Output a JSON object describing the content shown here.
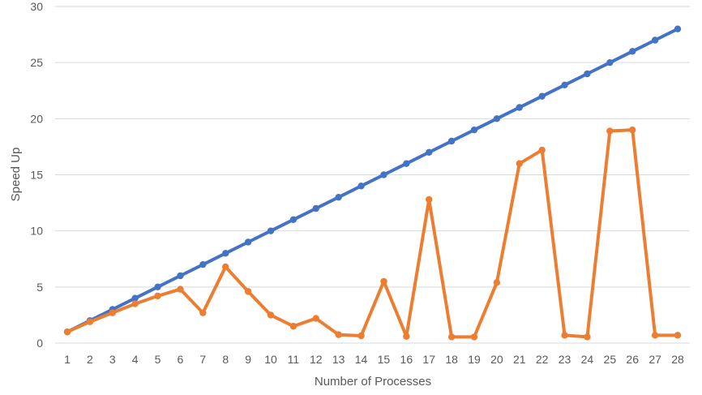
{
  "chart_data": {
    "type": "line",
    "xlabel": "Number of Processes",
    "ylabel": "Speed Up",
    "ylim": [
      0,
      30
    ],
    "yticks": [
      0,
      5,
      10,
      15,
      20,
      25,
      30
    ],
    "grid": "horizontal",
    "legend": "none",
    "categories": [
      "1",
      "2",
      "3",
      "4",
      "5",
      "6",
      "7",
      "8",
      "9",
      "10",
      "11",
      "12",
      "13",
      "14",
      "15",
      "16",
      "17",
      "18",
      "19",
      "20",
      "21",
      "22",
      "23",
      "24",
      "25",
      "26",
      "27",
      "28"
    ],
    "series": [
      {
        "color": "#4472C4",
        "values": [
          1,
          2,
          3,
          4,
          5,
          6,
          7,
          8,
          9,
          10,
          11,
          12,
          13,
          14,
          15,
          16,
          17,
          18,
          19,
          20,
          21,
          22,
          23,
          24,
          25,
          26,
          27,
          28
        ]
      },
      {
        "color": "#ED7D31",
        "values": [
          1,
          1.9,
          2.7,
          3.5,
          4.2,
          4.8,
          2.7,
          6.8,
          4.6,
          2.5,
          1.5,
          2.2,
          0.75,
          0.65,
          5.5,
          0.6,
          12.8,
          0.55,
          0.55,
          5.4,
          16,
          17.2,
          0.7,
          0.55,
          18.9,
          19,
          0.7,
          0.7
        ]
      }
    ]
  }
}
